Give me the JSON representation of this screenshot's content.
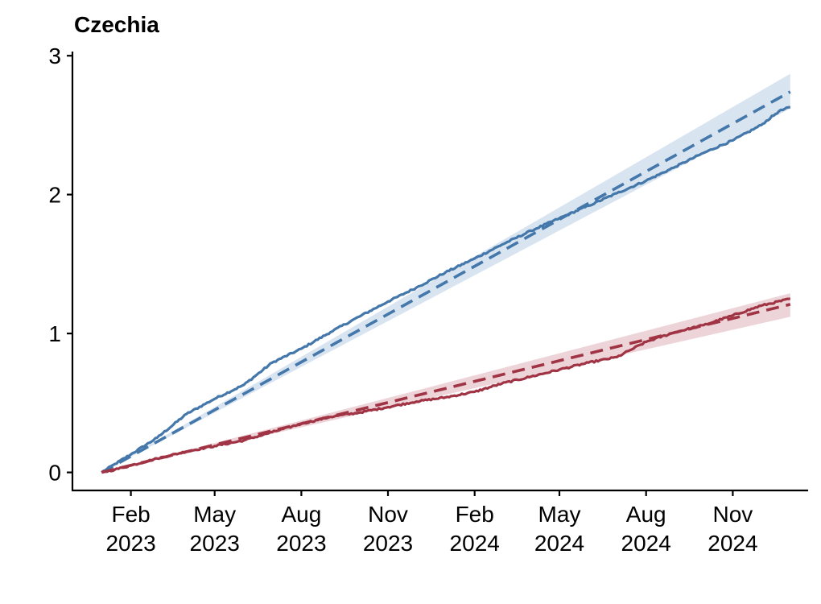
{
  "chart_data": {
    "type": "line",
    "title": "Czechia",
    "xlabel": "",
    "ylabel": "",
    "x_range": [
      "2022-12-01",
      "2025-01-20"
    ],
    "ylim": [
      -0.13,
      3.03
    ],
    "grid": false,
    "legend": "none",
    "x_ticks": [
      {
        "date": "2023-02-01",
        "month": "Feb",
        "year": "2023"
      },
      {
        "date": "2023-05-01",
        "month": "May",
        "year": "2023"
      },
      {
        "date": "2023-08-01",
        "month": "Aug",
        "year": "2023"
      },
      {
        "date": "2023-11-01",
        "month": "Nov",
        "year": "2023"
      },
      {
        "date": "2024-02-01",
        "month": "Feb",
        "year": "2024"
      },
      {
        "date": "2024-05-01",
        "month": "May",
        "year": "2024"
      },
      {
        "date": "2024-08-01",
        "month": "Aug",
        "year": "2024"
      },
      {
        "date": "2024-11-01",
        "month": "Nov",
        "year": "2024"
      }
    ],
    "y_ticks": [
      "0",
      "1",
      "2",
      "3"
    ],
    "series": [
      {
        "color": "#4477aa",
        "band_color": "#d9e4f1",
        "band": {
          "x": [
            "2023-01-01",
            "2025-01-01"
          ],
          "lower": [
            0.0,
            2.62
          ],
          "upper": [
            0.0,
            2.87
          ]
        },
        "expected": {
          "x": [
            "2023-01-01",
            "2025-01-01"
          ],
          "y": [
            0.0,
            2.74
          ]
        },
        "observed": {
          "x": [
            "2023-01-01",
            "2023-01-15",
            "2023-02-01",
            "2023-03-01",
            "2023-04-01",
            "2023-05-01",
            "2023-06-01",
            "2023-07-01",
            "2023-08-01",
            "2023-09-01",
            "2023-10-01",
            "2023-11-01",
            "2023-12-01",
            "2024-01-01",
            "2024-02-01",
            "2024-03-01",
            "2024-04-01",
            "2024-05-01",
            "2024-06-01",
            "2024-07-01",
            "2024-08-01",
            "2024-09-01",
            "2024-10-01",
            "2024-11-01",
            "2024-12-01",
            "2024-12-20",
            "2025-01-01"
          ],
          "y": [
            0.0,
            0.06,
            0.13,
            0.25,
            0.42,
            0.53,
            0.63,
            0.79,
            0.89,
            1.01,
            1.12,
            1.23,
            1.33,
            1.44,
            1.54,
            1.64,
            1.74,
            1.83,
            1.92,
            2.01,
            2.1,
            2.2,
            2.3,
            2.39,
            2.5,
            2.6,
            2.63
          ]
        }
      },
      {
        "color": "#a03445",
        "band_color": "#edd4d8",
        "band": {
          "x": [
            "2023-01-01",
            "2025-01-01"
          ],
          "lower": [
            0.0,
            1.12
          ],
          "upper": [
            0.0,
            1.29
          ]
        },
        "expected": {
          "x": [
            "2023-01-01",
            "2025-01-01"
          ],
          "y": [
            0.0,
            1.21
          ]
        },
        "observed": {
          "x": [
            "2023-01-01",
            "2023-01-15",
            "2023-02-01",
            "2023-03-01",
            "2023-04-01",
            "2023-05-01",
            "2023-06-01",
            "2023-07-01",
            "2023-08-01",
            "2023-09-01",
            "2023-10-01",
            "2023-11-01",
            "2023-12-01",
            "2024-01-01",
            "2024-02-01",
            "2024-03-01",
            "2024-04-01",
            "2024-05-01",
            "2024-06-01",
            "2024-07-01",
            "2024-07-15",
            "2024-08-01",
            "2024-09-01",
            "2024-10-01",
            "2024-11-01",
            "2024-12-01",
            "2025-01-01"
          ],
          "y": [
            0.0,
            0.02,
            0.05,
            0.1,
            0.15,
            0.19,
            0.23,
            0.29,
            0.35,
            0.4,
            0.43,
            0.47,
            0.51,
            0.54,
            0.58,
            0.64,
            0.69,
            0.74,
            0.79,
            0.83,
            0.88,
            0.94,
            1.01,
            1.06,
            1.13,
            1.2,
            1.25
          ]
        }
      }
    ]
  }
}
